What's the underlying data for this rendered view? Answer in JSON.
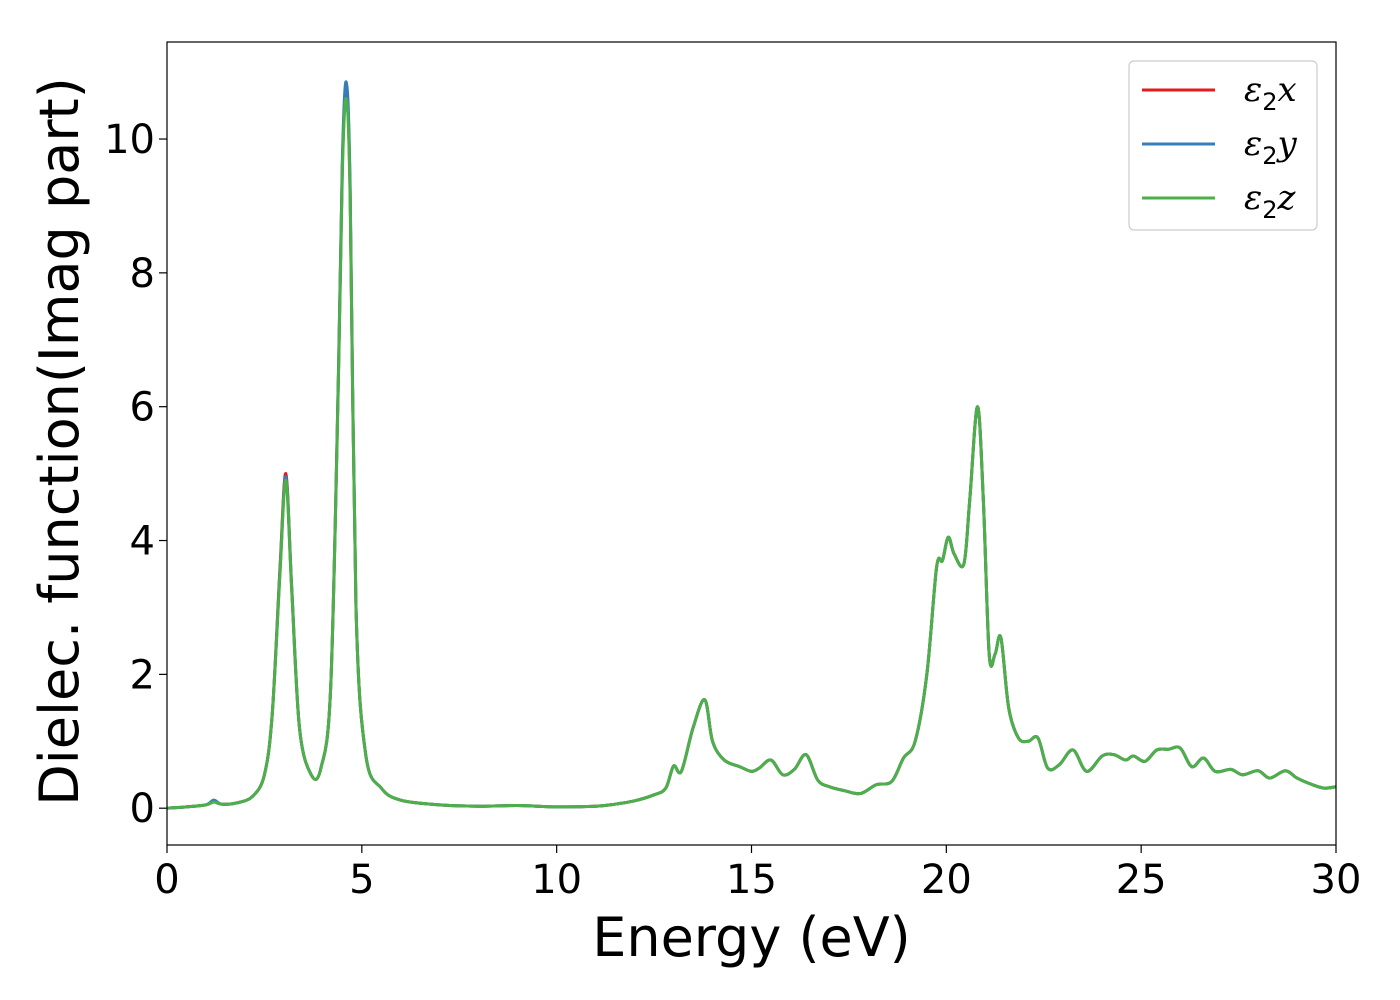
{
  "chart_data": {
    "type": "line",
    "title": "",
    "xlabel": "Energy (eV)",
    "ylabel": "Dielec. function(Imag part)",
    "xlim": [
      0,
      30
    ],
    "ylim": [
      -0.55,
      11.45
    ],
    "xticks": [
      0,
      5,
      10,
      15,
      20,
      25,
      30
    ],
    "xtick_labels": [
      "0",
      "5",
      "10",
      "15",
      "20",
      "25",
      "30"
    ],
    "yticks": [
      0,
      2,
      4,
      6,
      8,
      10
    ],
    "ytick_labels": [
      "0",
      "2",
      "4",
      "6",
      "8",
      "10"
    ],
    "grid": false,
    "legend_position": "top-right",
    "series": [
      {
        "name": "ε2x",
        "legend_base": "ε",
        "legend_sub": "2",
        "legend_suffix": "x",
        "color": "#e41a1c",
        "x": [
          0,
          0.5,
          1.0,
          1.2,
          1.4,
          1.8,
          2.2,
          2.5,
          2.7,
          2.9,
          3.05,
          3.2,
          3.4,
          3.7,
          3.95,
          4.2,
          4.4,
          4.5,
          4.6,
          4.7,
          4.85,
          5.1,
          5.5,
          6.0,
          7.0,
          8.0,
          9.0,
          10.0,
          11.0,
          11.5,
          12.0,
          12.5,
          12.8,
          13.0,
          13.2,
          13.5,
          13.8,
          14.0,
          14.3,
          14.7,
          15.0,
          15.2,
          15.5,
          15.8,
          16.1,
          16.4,
          16.7,
          17.0,
          17.4,
          17.8,
          18.2,
          18.6,
          18.9,
          19.2,
          19.5,
          19.75,
          19.9,
          20.05,
          20.2,
          20.45,
          20.6,
          20.8,
          20.95,
          21.1,
          21.25,
          21.4,
          21.6,
          21.85,
          22.1,
          22.35,
          22.6,
          22.9,
          23.25,
          23.6,
          24.0,
          24.3,
          24.6,
          24.8,
          25.1,
          25.4,
          25.7,
          26.0,
          26.3,
          26.6,
          26.9,
          27.3,
          27.6,
          28.0,
          28.3,
          28.7,
          29.0,
          29.4,
          29.7,
          30.0
        ],
        "values": [
          0.0,
          0.02,
          0.05,
          0.1,
          0.06,
          0.08,
          0.18,
          0.5,
          1.4,
          3.6,
          5.0,
          3.3,
          1.2,
          0.5,
          0.6,
          1.8,
          6.5,
          9.6,
          10.7,
          9.2,
          3.0,
          0.8,
          0.3,
          0.12,
          0.05,
          0.03,
          0.04,
          0.02,
          0.03,
          0.06,
          0.11,
          0.2,
          0.3,
          0.63,
          0.55,
          1.2,
          1.62,
          1.0,
          0.72,
          0.62,
          0.55,
          0.6,
          0.72,
          0.5,
          0.58,
          0.8,
          0.42,
          0.32,
          0.26,
          0.22,
          0.35,
          0.4,
          0.75,
          1.0,
          2.0,
          3.6,
          3.7,
          4.05,
          3.8,
          3.65,
          4.6,
          6.0,
          4.6,
          2.3,
          2.3,
          2.55,
          1.5,
          1.05,
          1.0,
          1.05,
          0.6,
          0.65,
          0.87,
          0.55,
          0.78,
          0.8,
          0.72,
          0.78,
          0.7,
          0.87,
          0.88,
          0.9,
          0.62,
          0.75,
          0.55,
          0.58,
          0.5,
          0.56,
          0.45,
          0.56,
          0.45,
          0.35,
          0.3,
          0.32
        ]
      },
      {
        "name": "ε2y",
        "legend_base": "ε",
        "legend_sub": "2",
        "legend_suffix": "y",
        "color": "#377eb8",
        "x": [
          0,
          0.5,
          1.0,
          1.2,
          1.4,
          1.8,
          2.2,
          2.5,
          2.7,
          2.9,
          3.05,
          3.2,
          3.4,
          3.7,
          3.95,
          4.2,
          4.4,
          4.5,
          4.6,
          4.7,
          4.85,
          5.1,
          5.5,
          6.0,
          7.0,
          8.0,
          9.0,
          10.0,
          11.0,
          11.5,
          12.0,
          12.5,
          12.8,
          13.0,
          13.2,
          13.5,
          13.8,
          14.0,
          14.3,
          14.7,
          15.0,
          15.2,
          15.5,
          15.8,
          16.1,
          16.4,
          16.7,
          17.0,
          17.4,
          17.8,
          18.2,
          18.6,
          18.9,
          19.2,
          19.5,
          19.75,
          19.9,
          20.05,
          20.2,
          20.45,
          20.6,
          20.8,
          20.95,
          21.1,
          21.25,
          21.4,
          21.6,
          21.85,
          22.1,
          22.35,
          22.6,
          22.9,
          23.25,
          23.6,
          24.0,
          24.3,
          24.6,
          24.8,
          25.1,
          25.4,
          25.7,
          26.0,
          26.3,
          26.6,
          26.9,
          27.3,
          27.6,
          28.0,
          28.3,
          28.7,
          29.0,
          29.4,
          29.7,
          30.0
        ],
        "values": [
          0.0,
          0.02,
          0.05,
          0.12,
          0.06,
          0.08,
          0.18,
          0.5,
          1.4,
          3.55,
          4.95,
          3.3,
          1.2,
          0.5,
          0.6,
          1.8,
          6.5,
          9.7,
          10.85,
          9.3,
          3.0,
          0.8,
          0.3,
          0.12,
          0.05,
          0.03,
          0.04,
          0.02,
          0.03,
          0.06,
          0.11,
          0.2,
          0.3,
          0.63,
          0.55,
          1.2,
          1.62,
          1.0,
          0.72,
          0.62,
          0.55,
          0.6,
          0.72,
          0.5,
          0.58,
          0.8,
          0.42,
          0.32,
          0.26,
          0.22,
          0.35,
          0.4,
          0.75,
          1.0,
          2.0,
          3.6,
          3.7,
          4.05,
          3.8,
          3.65,
          4.6,
          6.0,
          4.6,
          2.3,
          2.3,
          2.55,
          1.5,
          1.05,
          1.0,
          1.05,
          0.6,
          0.65,
          0.87,
          0.55,
          0.78,
          0.8,
          0.72,
          0.78,
          0.7,
          0.87,
          0.88,
          0.9,
          0.62,
          0.75,
          0.55,
          0.58,
          0.5,
          0.56,
          0.45,
          0.56,
          0.45,
          0.35,
          0.3,
          0.32
        ]
      },
      {
        "name": "ε2z",
        "legend_base": "ε",
        "legend_sub": "2",
        "legend_suffix": "z",
        "color": "#4daf4a",
        "x": [
          0,
          0.5,
          1.0,
          1.2,
          1.4,
          1.8,
          2.2,
          2.5,
          2.7,
          2.9,
          3.05,
          3.2,
          3.4,
          3.7,
          3.95,
          4.2,
          4.4,
          4.5,
          4.6,
          4.7,
          4.85,
          5.1,
          5.5,
          6.0,
          7.0,
          8.0,
          9.0,
          10.0,
          11.0,
          11.5,
          12.0,
          12.5,
          12.8,
          13.0,
          13.2,
          13.5,
          13.8,
          14.0,
          14.3,
          14.7,
          15.0,
          15.2,
          15.5,
          15.8,
          16.1,
          16.4,
          16.7,
          17.0,
          17.4,
          17.8,
          18.2,
          18.6,
          18.9,
          19.2,
          19.5,
          19.75,
          19.9,
          20.05,
          20.2,
          20.45,
          20.6,
          20.8,
          20.95,
          21.1,
          21.25,
          21.4,
          21.6,
          21.85,
          22.1,
          22.35,
          22.6,
          22.9,
          23.25,
          23.6,
          24.0,
          24.3,
          24.6,
          24.8,
          25.1,
          25.4,
          25.7,
          26.0,
          26.3,
          26.6,
          26.9,
          27.3,
          27.6,
          28.0,
          28.3,
          28.7,
          29.0,
          29.4,
          29.7,
          30.0
        ],
        "values": [
          0.0,
          0.02,
          0.05,
          0.09,
          0.06,
          0.08,
          0.18,
          0.5,
          1.4,
          3.5,
          4.9,
          3.25,
          1.2,
          0.5,
          0.6,
          1.8,
          6.4,
          9.5,
          10.6,
          9.1,
          3.0,
          0.8,
          0.3,
          0.12,
          0.05,
          0.03,
          0.04,
          0.02,
          0.03,
          0.06,
          0.11,
          0.2,
          0.3,
          0.63,
          0.55,
          1.2,
          1.62,
          1.0,
          0.72,
          0.62,
          0.55,
          0.6,
          0.72,
          0.5,
          0.58,
          0.8,
          0.42,
          0.32,
          0.26,
          0.22,
          0.35,
          0.4,
          0.75,
          1.0,
          2.0,
          3.6,
          3.7,
          4.05,
          3.8,
          3.65,
          4.6,
          6.0,
          4.6,
          2.3,
          2.3,
          2.55,
          1.5,
          1.05,
          1.0,
          1.05,
          0.6,
          0.65,
          0.87,
          0.55,
          0.78,
          0.8,
          0.72,
          0.78,
          0.7,
          0.87,
          0.88,
          0.9,
          0.62,
          0.75,
          0.55,
          0.58,
          0.5,
          0.56,
          0.45,
          0.56,
          0.45,
          0.35,
          0.3,
          0.32
        ]
      }
    ]
  }
}
